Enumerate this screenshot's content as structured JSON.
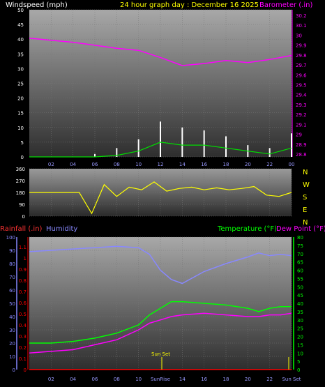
{
  "colors": {
    "windspeed": "#ffffff",
    "gust": "#ffffff",
    "avgwind": "#00dd00",
    "barometer": "#ff00ff",
    "direction": "#ffff00",
    "humidity": "#8888ff",
    "temperature": "#00ff00",
    "dewpoint": "#ff00ff",
    "rainfall": "#ff0000",
    "sunline": "#ffff00",
    "xaxis": "#9999ff",
    "title": "#ffff00"
  },
  "title": "24 hour graph day : December 16 2025",
  "wind_panel": {
    "left_label": "Windspeed (mph)",
    "right_label": "Barometer (.in)",
    "left_ticks": [
      "50",
      "45",
      "40",
      "35",
      "30",
      "25",
      "20",
      "15",
      "10",
      "5",
      "0"
    ],
    "right_ticks": [
      "30.2",
      "30.1",
      "30",
      "29.9",
      "29.8",
      "29.7",
      "29.6",
      "29.5",
      "29.4",
      "29.3",
      "29.2",
      "29.1",
      "29",
      "28.9",
      "28.8"
    ]
  },
  "dir_panel": {
    "left_ticks": [
      "360",
      "270",
      "180",
      "90",
      "0"
    ],
    "compass": [
      "N",
      "W",
      "S",
      "E",
      "N"
    ]
  },
  "temp_panel": {
    "rain_label": "Rainfall (.in)",
    "hum_label": "Humidity",
    "temp_label": "Temperature (°F)",
    "dew_label": "Dew Point (°F)",
    "hum_ticks": [
      "100",
      "90",
      "80",
      "70",
      "60",
      "50",
      "40",
      "30",
      "20",
      "10",
      "0"
    ],
    "rain_ticks": [
      "1.1",
      "1",
      "0.9",
      "0.8",
      "0.7",
      "0.6",
      "0.5",
      "0.4",
      "0.3",
      "0.2",
      "0.1",
      "0"
    ],
    "temp_ticks": [
      "80",
      "75",
      "70",
      "65",
      "60",
      "55",
      "50",
      "45",
      "40",
      "35",
      "30",
      "25",
      "20",
      "15",
      "10",
      "5",
      "0"
    ],
    "sunset_label": "Sun Set",
    "sunrise_label": "SunRise"
  },
  "x_ticks_top": [
    "02",
    "04",
    "06",
    "08",
    "10",
    "12",
    "14",
    "16",
    "18",
    "20",
    "22",
    "00"
  ],
  "x_ticks_bottom": [
    "02",
    "04",
    "06",
    "08",
    "10",
    "SunRise",
    "14",
    "16",
    "18",
    "20",
    "22",
    "Sun Set"
  ],
  "chart_data": [
    {
      "type": "line",
      "title": "24 hour graph day : December 16 2025",
      "ylabel": "Windspeed (mph)",
      "y2label": "Barometer (.in)",
      "x": [
        "00",
        "02",
        "04",
        "06",
        "08",
        "10",
        "12",
        "14",
        "16",
        "18",
        "20",
        "22",
        "00"
      ],
      "ylim": [
        0,
        50
      ],
      "y2lim": [
        28.8,
        30.25
      ],
      "series": [
        {
          "name": "Barometer (.in)",
          "axis": "right",
          "values": [
            29.97,
            29.95,
            29.93,
            29.9,
            29.87,
            29.85,
            29.78,
            29.7,
            29.72,
            29.75,
            29.73,
            29.76,
            29.8
          ]
        },
        {
          "name": "Windspeed (mph)",
          "axis": "left",
          "values": [
            0,
            0,
            0,
            0,
            0.5,
            2,
            5,
            4,
            4,
            3,
            2,
            1,
            3
          ]
        },
        {
          "name": "Gust (mph)",
          "axis": "left",
          "values": [
            0,
            0,
            0,
            1,
            3,
            6,
            12,
            10,
            9,
            7,
            4,
            3,
            8
          ]
        }
      ]
    },
    {
      "type": "scatter",
      "ylabel": "Direction",
      "x": [
        "00",
        "02",
        "04",
        "06",
        "08",
        "08",
        "09",
        "10",
        "11",
        "12",
        "13",
        "14",
        "15",
        "16",
        "17",
        "18",
        "19",
        "20",
        "21",
        "22",
        "23",
        "00"
      ],
      "ylim": [
        0,
        360
      ],
      "series": [
        {
          "name": "Direction",
          "values": [
            180,
            180,
            180,
            180,
            180,
            20,
            240,
            150,
            220,
            200,
            260,
            190,
            210,
            220,
            200,
            215,
            200,
            210,
            225,
            160,
            150,
            180
          ]
        }
      ]
    },
    {
      "type": "line",
      "x": [
        "00",
        "02",
        "04",
        "06",
        "08",
        "10",
        "11",
        "12",
        "13",
        "14",
        "16",
        "18",
        "20",
        "21",
        "22",
        "23",
        "00"
      ],
      "ylim": [
        0,
        100
      ],
      "y2lim": [
        0,
        80
      ],
      "rain_ylim": [
        0,
        1.15
      ],
      "series": [
        {
          "name": "Humidity",
          "axis": "left",
          "values": [
            89,
            90,
            91,
            92,
            93,
            92,
            87,
            75,
            68,
            65,
            74,
            80,
            85,
            88,
            86,
            87,
            86
          ]
        },
        {
          "name": "Temperature (°F)",
          "axis": "right",
          "values": [
            16,
            16,
            17,
            19,
            22,
            27,
            33,
            37,
            41,
            41,
            40,
            39,
            37,
            35,
            37,
            38,
            38
          ]
        },
        {
          "name": "Dew Point (°F)",
          "axis": "right",
          "values": [
            10,
            11,
            12,
            15,
            18,
            24,
            28,
            30,
            32,
            33,
            34,
            33,
            32,
            32,
            33,
            33,
            34
          ]
        },
        {
          "name": "Rainfall (.in)",
          "axis": "rain",
          "values": [
            0,
            0,
            0,
            0,
            0,
            0,
            0,
            0,
            0,
            0,
            0,
            0,
            0,
            0,
            0,
            0,
            0
          ]
        }
      ]
    }
  ]
}
